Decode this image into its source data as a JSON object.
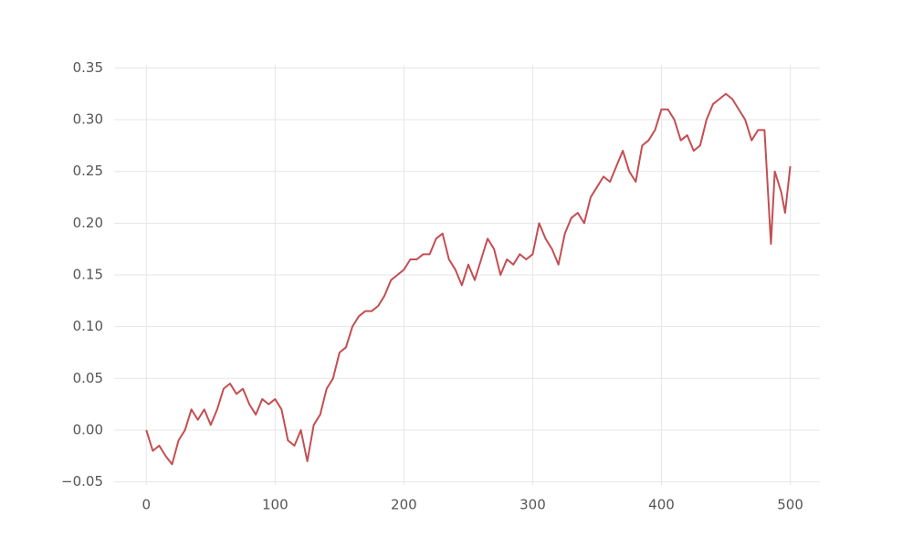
{
  "chart_data": {
    "type": "line",
    "x": [
      0,
      5,
      10,
      15,
      20,
      25,
      30,
      35,
      40,
      45,
      50,
      55,
      60,
      65,
      70,
      75,
      80,
      85,
      90,
      95,
      100,
      105,
      110,
      115,
      120,
      125,
      130,
      135,
      140,
      145,
      150,
      155,
      160,
      165,
      170,
      175,
      180,
      185,
      190,
      195,
      200,
      205,
      210,
      215,
      220,
      225,
      230,
      235,
      240,
      245,
      250,
      255,
      260,
      265,
      270,
      275,
      280,
      285,
      290,
      295,
      300,
      305,
      310,
      315,
      320,
      325,
      330,
      335,
      340,
      345,
      350,
      355,
      360,
      365,
      370,
      375,
      380,
      385,
      390,
      395,
      400,
      405,
      410,
      415,
      420,
      425,
      430,
      435,
      440,
      445,
      450,
      455,
      460,
      465,
      470,
      475,
      480,
      485,
      488,
      493,
      496,
      500
    ],
    "series": [
      {
        "color": "#c44e52",
        "values": [
          0.0,
          -0.02,
          -0.015,
          -0.025,
          -0.033,
          -0.01,
          0.0,
          0.02,
          0.01,
          0.02,
          0.005,
          0.02,
          0.04,
          0.045,
          0.035,
          0.04,
          0.025,
          0.015,
          0.03,
          0.025,
          0.03,
          0.02,
          -0.01,
          -0.015,
          0.0,
          -0.03,
          0.005,
          0.015,
          0.04,
          0.05,
          0.075,
          0.08,
          0.1,
          0.11,
          0.115,
          0.115,
          0.12,
          0.13,
          0.145,
          0.15,
          0.155,
          0.165,
          0.165,
          0.17,
          0.17,
          0.185,
          0.19,
          0.165,
          0.155,
          0.14,
          0.16,
          0.145,
          0.165,
          0.185,
          0.175,
          0.15,
          0.165,
          0.16,
          0.17,
          0.165,
          0.17,
          0.2,
          0.185,
          0.175,
          0.16,
          0.19,
          0.205,
          0.21,
          0.2,
          0.225,
          0.235,
          0.245,
          0.24,
          0.255,
          0.27,
          0.25,
          0.24,
          0.275,
          0.28,
          0.29,
          0.31,
          0.31,
          0.3,
          0.28,
          0.285,
          0.27,
          0.275,
          0.3,
          0.315,
          0.32,
          0.325,
          0.32,
          0.31,
          0.3,
          0.28,
          0.29,
          0.29,
          0.18,
          0.25,
          0.23,
          0.21,
          0.255
        ]
      }
    ],
    "xlim": [
      -25,
      523
    ],
    "ylim": [
      -0.053,
      0.353
    ],
    "xticks": [
      0,
      100,
      200,
      300,
      400,
      500
    ],
    "yticks": [
      {
        "value": -0.05,
        "label": "−0.05"
      },
      {
        "value": 0,
        "label": "0.00"
      },
      0.05,
      {
        "value": 0.1,
        "label": "0.10"
      },
      0.15,
      {
        "value": 0.2,
        "label": "0.20"
      },
      0.25,
      {
        "value": 0.3,
        "label": "0.30"
      },
      0.35
    ],
    "grid": true
  }
}
